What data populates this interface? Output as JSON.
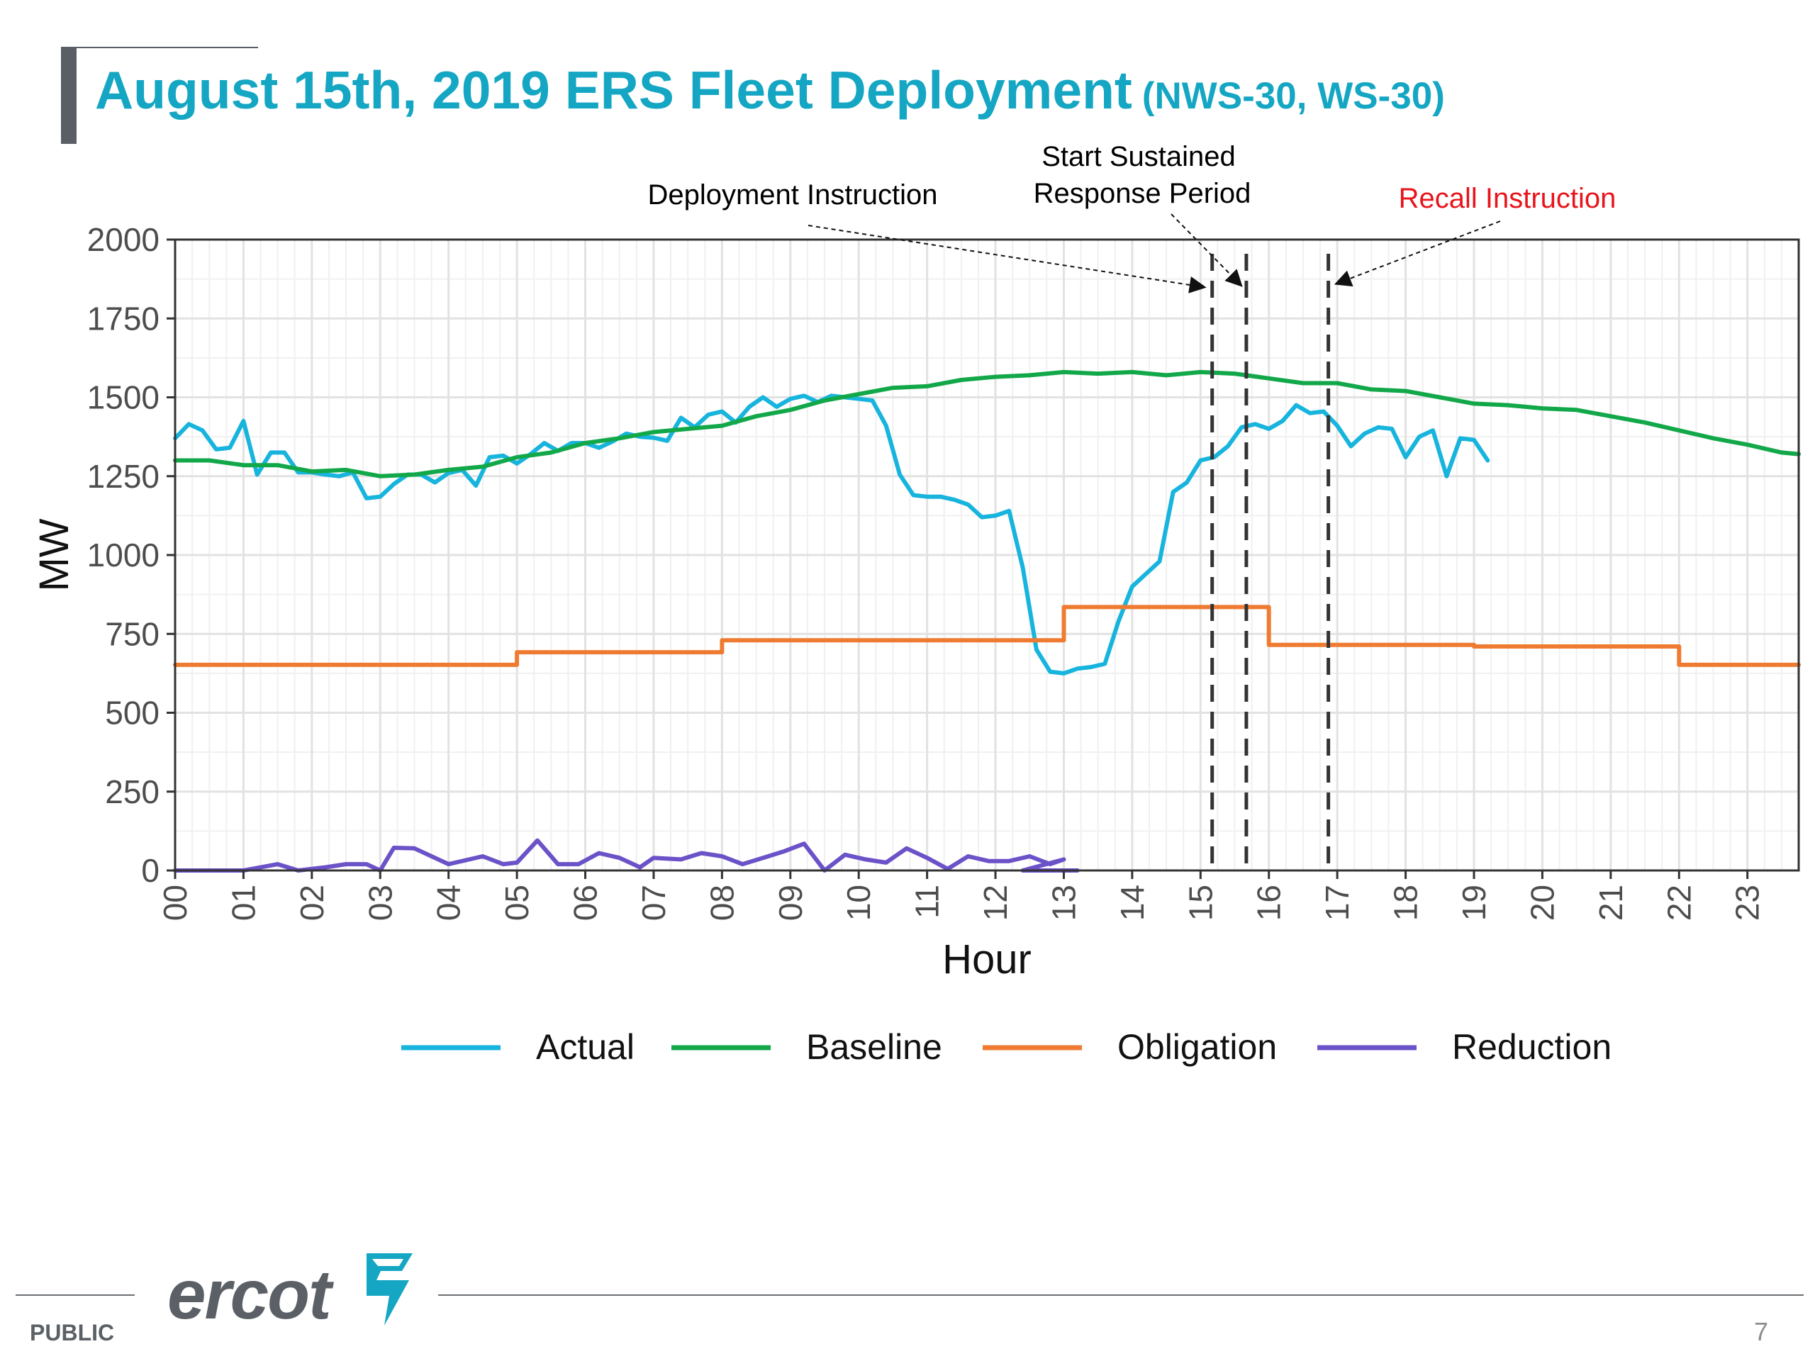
{
  "slide": {
    "title": "August 15th, 2019 ERS Fleet Deployment",
    "title_sub": "(NWS-30, WS-30)",
    "footer_label": "PUBLIC",
    "page_number": "7",
    "logo_text": "ercot"
  },
  "chart_data": {
    "type": "line",
    "xlabel": "Hour",
    "ylabel": "MW",
    "xlim": [
      0,
      23.75
    ],
    "ylim": [
      0,
      2000
    ],
    "y_ticks": [
      0,
      250,
      500,
      750,
      1000,
      1250,
      1500,
      1750,
      2000
    ],
    "x_tick_labels": [
      "00",
      "01",
      "02",
      "03",
      "04",
      "05",
      "06",
      "07",
      "08",
      "09",
      "10",
      "11",
      "12",
      "13",
      "14",
      "15",
      "16",
      "17",
      "18",
      "19",
      "20",
      "21",
      "22",
      "23"
    ],
    "grid": true,
    "legend_position": "bottom",
    "annotations": [
      {
        "text": "Deployment Instruction",
        "x": 15.17,
        "color": "#000000"
      },
      {
        "text": "Start Sustained",
        "text2": "Response Period",
        "x": 15.67,
        "color": "#000000"
      },
      {
        "text": "Recall Instruction",
        "x": 16.87,
        "color": "#e8141b"
      }
    ],
    "series": [
      {
        "name": "Actual",
        "color": "#17b4dd",
        "step": false,
        "points": [
          [
            0,
            1370
          ],
          [
            0.2,
            1415
          ],
          [
            0.4,
            1395
          ],
          [
            0.6,
            1335
          ],
          [
            0.8,
            1340
          ],
          [
            1.0,
            1425
          ],
          [
            1.2,
            1255
          ],
          [
            1.4,
            1325
          ],
          [
            1.6,
            1325
          ],
          [
            1.8,
            1262
          ],
          [
            2.0,
            1262
          ],
          [
            2.2,
            1255
          ],
          [
            2.4,
            1250
          ],
          [
            2.6,
            1262
          ],
          [
            2.8,
            1180
          ],
          [
            3.0,
            1185
          ],
          [
            3.2,
            1225
          ],
          [
            3.4,
            1255
          ],
          [
            3.6,
            1255
          ],
          [
            3.8,
            1230
          ],
          [
            4.0,
            1260
          ],
          [
            4.2,
            1270
          ],
          [
            4.4,
            1220
          ],
          [
            4.6,
            1310
          ],
          [
            4.8,
            1315
          ],
          [
            5.0,
            1290
          ],
          [
            5.2,
            1320
          ],
          [
            5.4,
            1355
          ],
          [
            5.6,
            1330
          ],
          [
            5.8,
            1355
          ],
          [
            6.0,
            1355
          ],
          [
            6.2,
            1340
          ],
          [
            6.4,
            1360
          ],
          [
            6.6,
            1385
          ],
          [
            6.8,
            1375
          ],
          [
            7.0,
            1372
          ],
          [
            7.2,
            1362
          ],
          [
            7.4,
            1435
          ],
          [
            7.6,
            1405
          ],
          [
            7.8,
            1445
          ],
          [
            8.0,
            1455
          ],
          [
            8.2,
            1420
          ],
          [
            8.4,
            1470
          ],
          [
            8.6,
            1500
          ],
          [
            8.8,
            1470
          ],
          [
            9.0,
            1495
          ],
          [
            9.2,
            1505
          ],
          [
            9.4,
            1485
          ],
          [
            9.6,
            1505
          ],
          [
            9.8,
            1500
          ],
          [
            10.0,
            1495
          ],
          [
            10.2,
            1490
          ],
          [
            10.4,
            1410
          ],
          [
            10.6,
            1255
          ],
          [
            10.8,
            1190
          ],
          [
            11.0,
            1185
          ],
          [
            11.2,
            1185
          ],
          [
            11.4,
            1175
          ],
          [
            11.6,
            1160
          ],
          [
            11.8,
            1120
          ],
          [
            12.0,
            1125
          ],
          [
            12.2,
            1140
          ],
          [
            12.4,
            960
          ],
          [
            12.6,
            700
          ],
          [
            12.8,
            630
          ],
          [
            13.0,
            625
          ],
          [
            13.2,
            640
          ],
          [
            13.4,
            645
          ],
          [
            13.6,
            655
          ],
          [
            13.8,
            790
          ],
          [
            14.0,
            900
          ],
          [
            14.2,
            940
          ],
          [
            14.4,
            980
          ],
          [
            14.6,
            1200
          ],
          [
            14.8,
            1230
          ],
          [
            15.0,
            1300
          ],
          [
            15.2,
            1310
          ],
          [
            15.4,
            1345
          ],
          [
            15.6,
            1405
          ],
          [
            15.8,
            1415
          ],
          [
            16.0,
            1400
          ],
          [
            16.2,
            1425
          ],
          [
            16.4,
            1475
          ],
          [
            16.6,
            1450
          ],
          [
            16.8,
            1455
          ],
          [
            17.0,
            1410
          ],
          [
            17.2,
            1345
          ],
          [
            17.4,
            1385
          ],
          [
            17.6,
            1405
          ],
          [
            17.8,
            1400
          ],
          [
            18.0,
            1310
          ],
          [
            18.2,
            1375
          ],
          [
            18.4,
            1395
          ],
          [
            18.6,
            1250
          ],
          [
            18.8,
            1370
          ],
          [
            19.0,
            1365
          ],
          [
            19.2,
            1300
          ]
        ]
      },
      {
        "name": "Baseline",
        "color": "#12a84a",
        "step": false,
        "points": [
          [
            0,
            1300
          ],
          [
            0.5,
            1300
          ],
          [
            1.0,
            1285
          ],
          [
            1.5,
            1285
          ],
          [
            2.0,
            1265
          ],
          [
            2.5,
            1270
          ],
          [
            3.0,
            1250
          ],
          [
            3.5,
            1255
          ],
          [
            4.0,
            1270
          ],
          [
            4.5,
            1280
          ],
          [
            5.0,
            1310
          ],
          [
            5.5,
            1325
          ],
          [
            6.0,
            1355
          ],
          [
            6.5,
            1370
          ],
          [
            7.0,
            1390
          ],
          [
            7.5,
            1400
          ],
          [
            8.0,
            1410
          ],
          [
            8.5,
            1440
          ],
          [
            9.0,
            1460
          ],
          [
            9.5,
            1490
          ],
          [
            10.0,
            1510
          ],
          [
            10.5,
            1530
          ],
          [
            11.0,
            1535
          ],
          [
            11.5,
            1555
          ],
          [
            12.0,
            1565
          ],
          [
            12.5,
            1570
          ],
          [
            13.0,
            1580
          ],
          [
            13.5,
            1575
          ],
          [
            14.0,
            1580
          ],
          [
            14.5,
            1570
          ],
          [
            15.0,
            1580
          ],
          [
            15.5,
            1575
          ],
          [
            16.0,
            1560
          ],
          [
            16.5,
            1545
          ],
          [
            17.0,
            1545
          ],
          [
            17.5,
            1525
          ],
          [
            18.0,
            1520
          ],
          [
            18.5,
            1500
          ],
          [
            19.0,
            1480
          ],
          [
            19.5,
            1475
          ],
          [
            20.0,
            1465
          ],
          [
            20.5,
            1460
          ],
          [
            21.0,
            1440
          ],
          [
            21.5,
            1420
          ],
          [
            22.0,
            1395
          ],
          [
            22.5,
            1370
          ],
          [
            23.0,
            1350
          ],
          [
            23.5,
            1325
          ],
          [
            23.75,
            1320
          ]
        ]
      },
      {
        "name": "Obligation",
        "color": "#ef7b32",
        "step": true,
        "points": [
          [
            0,
            652
          ],
          [
            5.0,
            652
          ],
          [
            5.0,
            692
          ],
          [
            8.0,
            692
          ],
          [
            8.0,
            730
          ],
          [
            13.0,
            730
          ],
          [
            13.0,
            835
          ],
          [
            16.0,
            835
          ],
          [
            16.0,
            715
          ],
          [
            19.0,
            715
          ],
          [
            19.0,
            710
          ],
          [
            22.0,
            710
          ],
          [
            22.0,
            652
          ],
          [
            23.75,
            652
          ]
        ]
      },
      {
        "name": "Reduction",
        "color": "#6b52c8",
        "step": false,
        "points": [
          [
            0,
            0
          ],
          [
            0.5,
            0
          ],
          [
            1.0,
            0
          ],
          [
            1.5,
            20
          ],
          [
            1.8,
            0
          ],
          [
            2.2,
            10
          ],
          [
            2.5,
            20
          ],
          [
            2.8,
            20
          ],
          [
            3.0,
            0
          ],
          [
            3.2,
            72
          ],
          [
            3.5,
            70
          ],
          [
            4.0,
            20
          ],
          [
            4.5,
            45
          ],
          [
            4.8,
            20
          ],
          [
            5.0,
            25
          ],
          [
            5.3,
            95
          ],
          [
            5.6,
            20
          ],
          [
            5.9,
            20
          ],
          [
            6.2,
            55
          ],
          [
            6.5,
            40
          ],
          [
            6.8,
            10
          ],
          [
            7.0,
            40
          ],
          [
            7.4,
            35
          ],
          [
            7.7,
            55
          ],
          [
            8.0,
            45
          ],
          [
            8.3,
            20
          ],
          [
            8.6,
            40
          ],
          [
            8.9,
            60
          ],
          [
            9.2,
            85
          ],
          [
            9.5,
            0
          ],
          [
            9.8,
            50
          ],
          [
            10.1,
            35
          ],
          [
            10.4,
            25
          ],
          [
            10.7,
            70
          ],
          [
            11.0,
            40
          ],
          [
            11.3,
            5
          ],
          [
            11.6,
            45
          ],
          [
            11.9,
            30
          ],
          [
            12.2,
            30
          ],
          [
            12.5,
            45
          ],
          [
            12.8,
            20
          ],
          [
            13.0,
            35
          ],
          [
            12.4,
            0
          ],
          [
            12.6,
            0
          ],
          [
            13.0,
            0
          ],
          [
            13.2,
            0
          ]
        ]
      }
    ]
  },
  "legend": {
    "items": [
      {
        "label": "Actual",
        "color": "#17b4dd"
      },
      {
        "label": "Baseline",
        "color": "#12a84a"
      },
      {
        "label": "Obligation",
        "color": "#ef7b32"
      },
      {
        "label": "Reduction",
        "color": "#6b52c8"
      }
    ]
  }
}
